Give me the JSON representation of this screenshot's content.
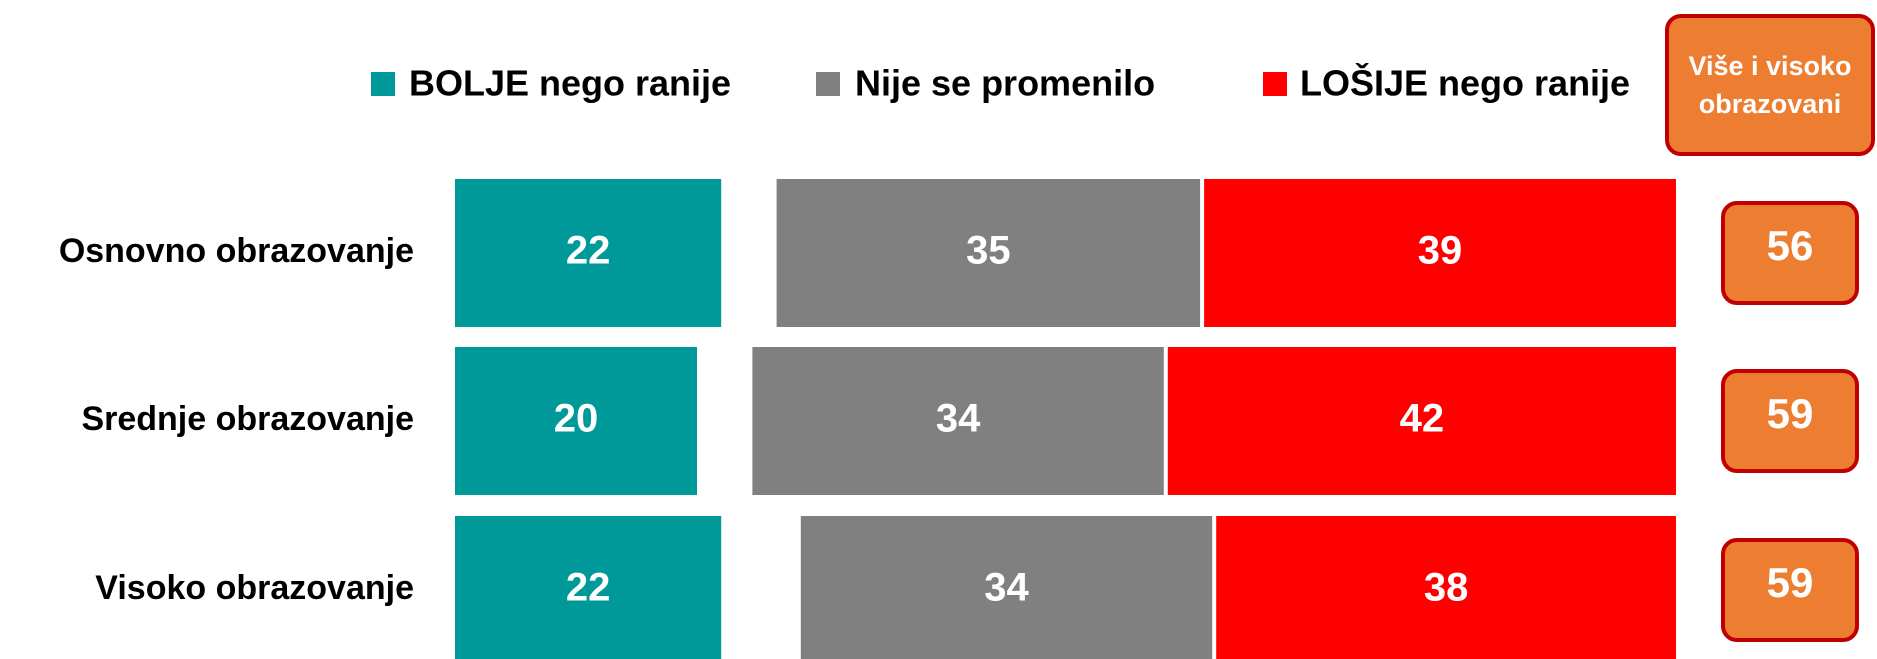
{
  "chart_data": {
    "type": "bar",
    "categories": [
      "Osnovno obrazovanje",
      "Srednje obrazovanje",
      "Visoko obrazovanje"
    ],
    "series": [
      {
        "name": "BOLJE nego ranije",
        "color": "#009999",
        "values": [
          22,
          20,
          22
        ]
      },
      {
        "name": "Nije se promenilo",
        "color": "#808080",
        "values": [
          35,
          34,
          34
        ]
      },
      {
        "name": "LOŠIJE nego ranije",
        "color": "#ff0000",
        "values": [
          39,
          42,
          38
        ]
      }
    ],
    "side_column": {
      "title": "Više i visoko obrazovani",
      "color": "#ed7d31",
      "values": [
        56,
        59,
        59
      ]
    }
  }
}
